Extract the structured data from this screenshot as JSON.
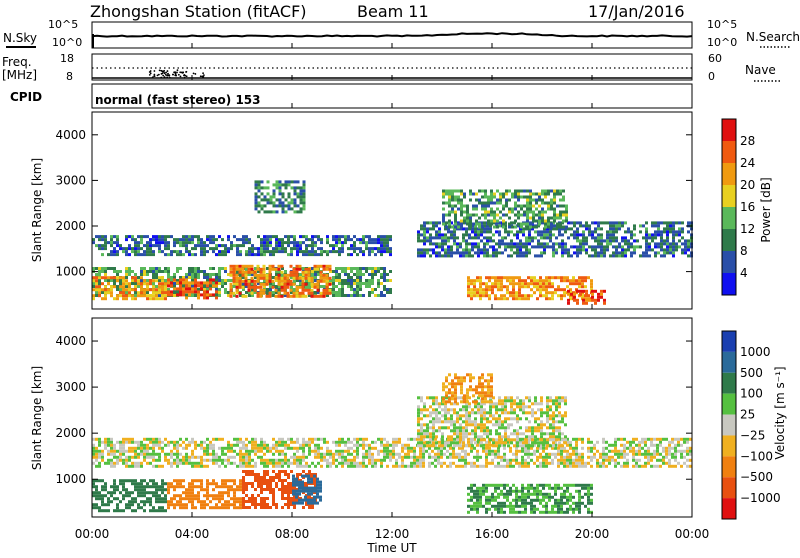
{
  "header": {
    "station": "Zhongshan Station (fitACF)",
    "beam": "Beam 11",
    "date": "17/Jan/2016"
  },
  "noise_panel": {
    "left_label": "N.Sky",
    "right_label": "N.Search",
    "left_ticks": [
      "10^5",
      "10^0"
    ],
    "right_ticks": [
      "10^5",
      "10^0"
    ]
  },
  "freq_panel": {
    "left_label_1": "Freq.",
    "left_label_2": "[MHz]",
    "right_label": "Nave",
    "left_ticks": [
      "18",
      "8"
    ],
    "right_ticks": [
      "60",
      "0"
    ]
  },
  "cpid": {
    "label": "CPID",
    "mode": "normal (fast stereo) 153"
  },
  "axes": {
    "ylabel": "Slant Range [km]",
    "xlabel": "Time UT",
    "y_ticks": [
      "1000",
      "2000",
      "3000",
      "4000"
    ],
    "x_ticks": [
      "00:00",
      "04:00",
      "08:00",
      "12:00",
      "16:00",
      "20:00",
      "00:00"
    ]
  },
  "colorbars": {
    "power": {
      "label": "Power [dB]",
      "ticks": [
        "4",
        "8",
        "12",
        "16",
        "20",
        "24",
        "28"
      ],
      "colors": [
        "#1010f0",
        "#2a4fa8",
        "#2f7a4a",
        "#5ab85a",
        "#e8d020",
        "#f09a10",
        "#f05a10",
        "#e01010"
      ]
    },
    "velocity": {
      "label": "Velocity [m s⁻¹]",
      "ticks": [
        "1000",
        "500",
        "100",
        "25",
        "−25",
        "−100",
        "−500",
        "−1000"
      ],
      "colors": [
        "#1a3fb0",
        "#2a6a9a",
        "#2f7a4a",
        "#55c040",
        "#c8c8c0",
        "#f0b020",
        "#f08010",
        "#e85010",
        "#e01010"
      ]
    }
  },
  "chart_data": [
    {
      "type": "heatmap",
      "title": "Power",
      "xlabel": "Time UT",
      "ylabel": "Slant Range [km]",
      "xlim_hours": [
        0,
        24
      ],
      "ylim_km": [
        180,
        4500
      ],
      "units": "dB",
      "regions": [
        {
          "t0": 0.0,
          "t1": 12.0,
          "r0": 1350,
          "r1": 1800,
          "level": 8
        },
        {
          "t0": 0.0,
          "t1": 12.0,
          "r0": 500,
          "r1": 1100,
          "level": 12
        },
        {
          "t0": 0.0,
          "t1": 3.0,
          "r0": 400,
          "r1": 900,
          "level": 22
        },
        {
          "t0": 3.0,
          "t1": 5.0,
          "r0": 450,
          "r1": 850,
          "level": 26
        },
        {
          "t0": 5.5,
          "t1": 9.5,
          "r0": 450,
          "r1": 1150,
          "level": 24
        },
        {
          "t0": 6.5,
          "t1": 8.5,
          "r0": 2300,
          "r1": 3000,
          "level": 10
        },
        {
          "t0": 13.0,
          "t1": 24.0,
          "r0": 1350,
          "r1": 2100,
          "level": 8
        },
        {
          "t0": 14.0,
          "t1": 19.0,
          "r0": 2000,
          "r1": 2800,
          "level": 12
        },
        {
          "t0": 15.0,
          "t1": 20.0,
          "r0": 400,
          "r1": 900,
          "level": 22
        },
        {
          "t0": 19.0,
          "t1": 20.5,
          "r0": 300,
          "r1": 600,
          "level": 28
        }
      ]
    },
    {
      "type": "heatmap",
      "title": "Velocity",
      "xlabel": "Time UT",
      "ylabel": "Slant Range [km]",
      "xlim_hours": [
        0,
        24
      ],
      "ylim_km": [
        180,
        4500
      ],
      "units": "m s^-1",
      "regions": [
        {
          "t0": 0.0,
          "t1": 24.0,
          "r0": 1300,
          "r1": 1900,
          "level": 0
        },
        {
          "t0": 0.0,
          "t1": 3.0,
          "r0": 300,
          "r1": 1000,
          "level": 200
        },
        {
          "t0": 3.0,
          "t1": 6.0,
          "r0": 400,
          "r1": 1000,
          "level": -300
        },
        {
          "t0": 6.0,
          "t1": 9.0,
          "r0": 400,
          "r1": 1200,
          "level": -600
        },
        {
          "t0": 8.0,
          "t1": 9.2,
          "r0": 500,
          "r1": 1100,
          "level": 800
        },
        {
          "t0": 13.0,
          "t1": 19.0,
          "r0": 1700,
          "r1": 2800,
          "level": 0
        },
        {
          "t0": 14.0,
          "t1": 16.0,
          "r0": 2700,
          "r1": 3300,
          "level": -100
        },
        {
          "t0": 15.0,
          "t1": 20.0,
          "r0": 300,
          "r1": 900,
          "level": 100
        }
      ]
    }
  ]
}
